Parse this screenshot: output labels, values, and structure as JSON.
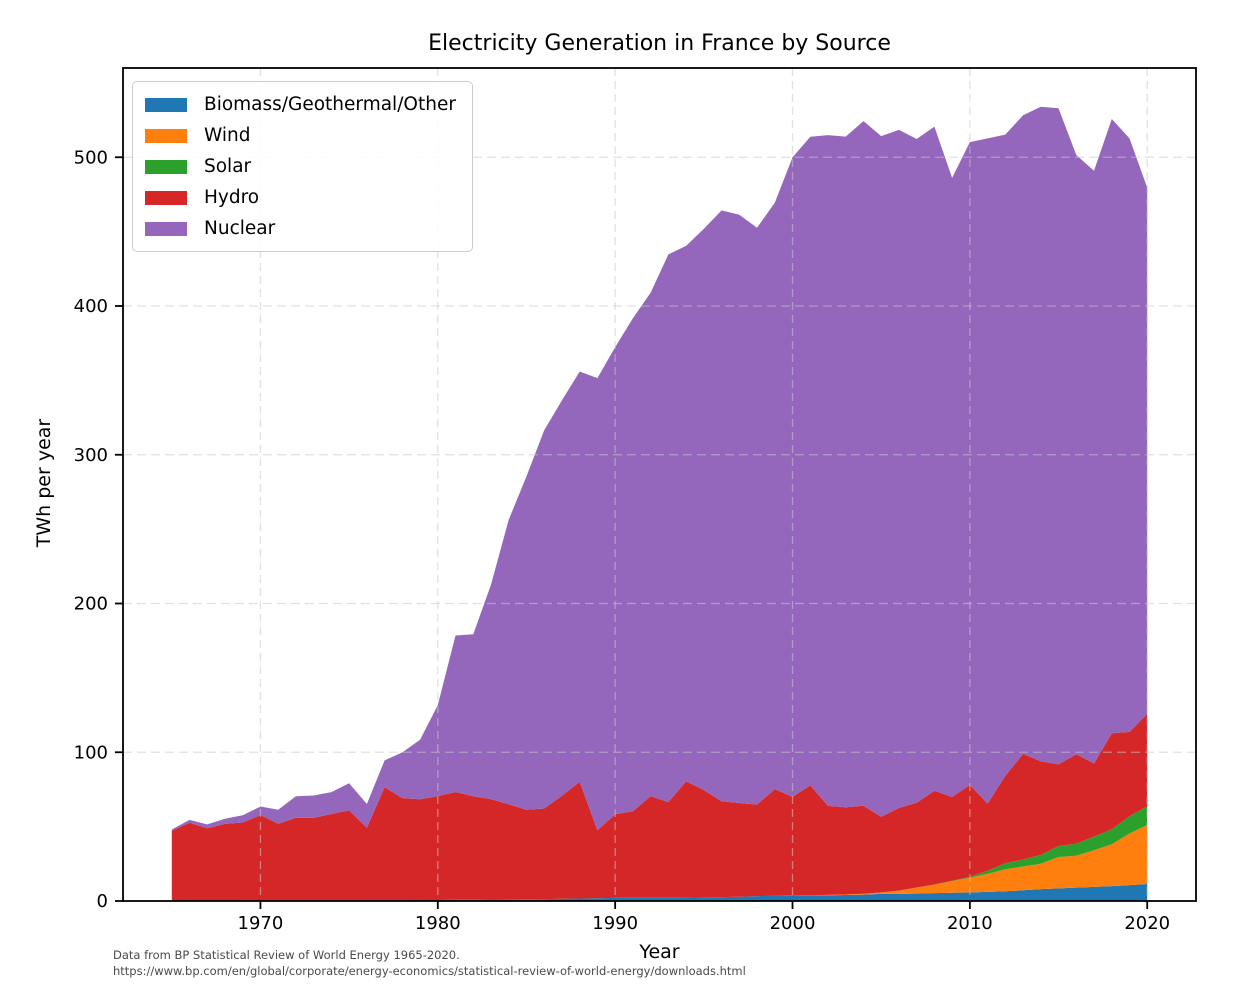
{
  "chart_data": {
    "type": "area",
    "stacked": true,
    "title": "Electricity Generation in France by Source",
    "xlabel": "Year",
    "ylabel": "TWh per year",
    "xlim": [
      1962.25,
      2022.75
    ],
    "ylim": [
      0,
      560
    ],
    "xticks": [
      1970,
      1980,
      1990,
      2000,
      2010,
      2020
    ],
    "yticks": [
      0,
      100,
      200,
      300,
      400,
      500
    ],
    "grid": "dashed, drawn above areas",
    "legend_position": "upper left",
    "years": [
      1965,
      1966,
      1967,
      1968,
      1969,
      1970,
      1971,
      1972,
      1973,
      1974,
      1975,
      1976,
      1977,
      1978,
      1979,
      1980,
      1981,
      1982,
      1983,
      1984,
      1985,
      1986,
      1987,
      1988,
      1989,
      1990,
      1991,
      1992,
      1993,
      1994,
      1995,
      1996,
      1997,
      1998,
      1999,
      2000,
      2001,
      2002,
      2003,
      2004,
      2005,
      2006,
      2007,
      2008,
      2009,
      2010,
      2011,
      2012,
      2013,
      2014,
      2015,
      2016,
      2017,
      2018,
      2019,
      2020
    ],
    "series": [
      {
        "name": "Biomass/Geothermal/Other",
        "color": "#1f77b4",
        "values": [
          0.3,
          0.3,
          0.3,
          0.3,
          0.4,
          0.4,
          0.4,
          0.4,
          0.5,
          0.5,
          0.5,
          0.5,
          0.6,
          0.6,
          0.7,
          0.7,
          0.8,
          0.9,
          1.0,
          1.1,
          1.2,
          1.3,
          1.5,
          1.7,
          1.9,
          2.1,
          2.2,
          2.2,
          2.2,
          2.3,
          2.4,
          2.6,
          2.8,
          3.3,
          3.4,
          3.5,
          3.7,
          3.8,
          4.0,
          4.3,
          4.8,
          4.8,
          5.0,
          5.3,
          5.5,
          5.7,
          6.1,
          6.5,
          7.2,
          8.0,
          8.5,
          9.0,
          9.5,
          10.0,
          10.7,
          11.4
        ]
      },
      {
        "name": "Wind",
        "color": "#ff7f0e",
        "values": [
          0,
          0,
          0,
          0,
          0,
          0,
          0,
          0,
          0,
          0,
          0,
          0,
          0,
          0,
          0,
          0,
          0,
          0,
          0,
          0,
          0,
          0,
          0,
          0,
          0,
          0,
          0,
          0,
          0,
          0,
          0,
          0,
          0,
          0,
          0,
          0.1,
          0.1,
          0.3,
          0.4,
          0.6,
          1.0,
          2.2,
          4.1,
          5.7,
          7.9,
          9.9,
          12.1,
          14.9,
          16.0,
          17.1,
          21.1,
          21.4,
          24.6,
          28.1,
          34.7,
          39.7
        ]
      },
      {
        "name": "Solar",
        "color": "#2ca02c",
        "values": [
          0,
          0,
          0,
          0,
          0,
          0,
          0,
          0,
          0,
          0,
          0,
          0,
          0,
          0,
          0,
          0,
          0,
          0,
          0,
          0,
          0,
          0,
          0,
          0,
          0,
          0,
          0,
          0,
          0,
          0,
          0,
          0,
          0,
          0,
          0,
          0,
          0,
          0,
          0,
          0,
          0,
          0,
          0,
          0.1,
          0.2,
          0.6,
          2.1,
          4.0,
          4.7,
          5.9,
          7.4,
          8.2,
          9.2,
          10.2,
          11.6,
          12.6
        ]
      },
      {
        "name": "Hydro",
        "color": "#d62728",
        "values": [
          46.9,
          52.3,
          48.6,
          51.5,
          52.4,
          57.4,
          51.5,
          55.5,
          55.4,
          58.0,
          60.4,
          48.8,
          76.0,
          68.6,
          67.7,
          69.8,
          72.5,
          69.5,
          67.5,
          64.0,
          60.2,
          60.9,
          69.3,
          78.5,
          45.7,
          56.2,
          58.1,
          68.3,
          64.3,
          78.2,
          72.2,
          64.4,
          63.1,
          61.5,
          71.8,
          66.5,
          73.9,
          59.8,
          58.6,
          59.1,
          50.9,
          55.6,
          57.0,
          63.0,
          56.4,
          61.8,
          45.2,
          58.8,
          71.0,
          62.9,
          54.9,
          60.0,
          49.2,
          64.5,
          56.7,
          62.1
        ]
      },
      {
        "name": "Nuclear",
        "color": "#9467bd",
        "values": [
          0.9,
          1.9,
          2.6,
          3.5,
          4.8,
          5.7,
          9.4,
          14.5,
          15.0,
          14.7,
          18.3,
          15.9,
          17.9,
          30.7,
          40.0,
          61.2,
          105.2,
          108.9,
          144.2,
          191.2,
          224.1,
          254.3,
          265.8,
          275.8,
          303.9,
          314.1,
          331.4,
          338.4,
          368.2,
          359.9,
          377.2,
          397.3,
          395.5,
          387.8,
          394.2,
          429.8,
          436.1,
          451.0,
          450.9,
          460.3,
          457.5,
          455.8,
          446.2,
          446.5,
          416.1,
          432.2,
          447.2,
          431.0,
          429.4,
          440.0,
          441.0,
          402.9,
          398.4,
          412.9,
          399.0,
          353.8
        ]
      }
    ],
    "footnote_lines": [
      "Data from BP Statistical Review of World Energy 1965-2020.",
      "https://www.bp.com/en/global/corporate/energy-economics/statistical-review-of-world-energy/downloads.html"
    ]
  }
}
